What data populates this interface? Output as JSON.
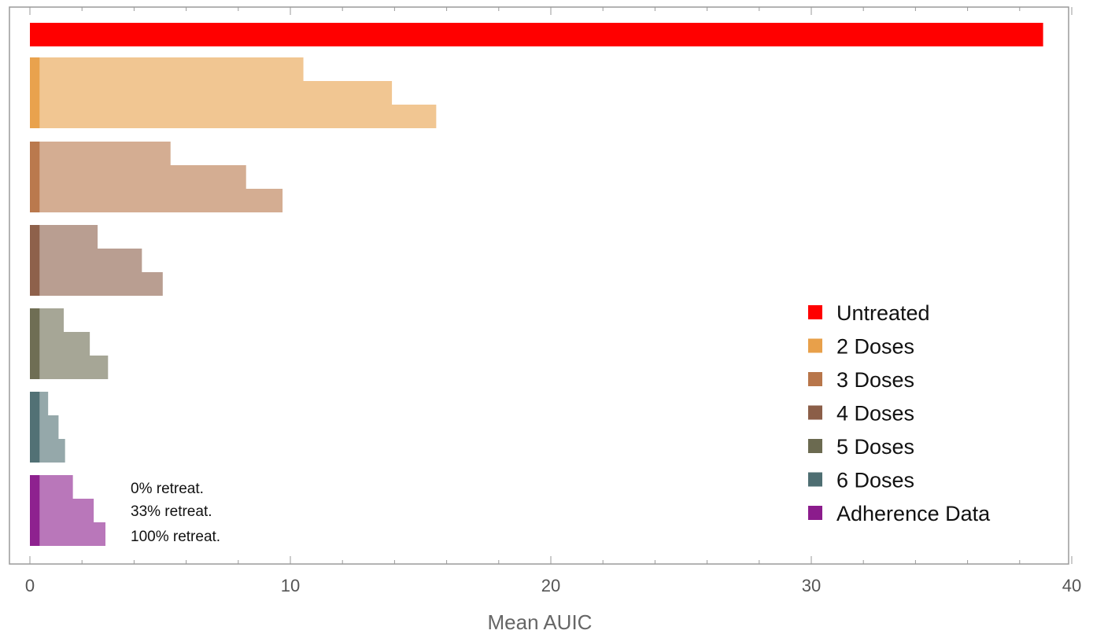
{
  "chart_data": {
    "type": "bar",
    "orientation": "horizontal",
    "xlabel": "Mean AUIC",
    "xlim": [
      0,
      40
    ],
    "xticks": [
      "0",
      "10",
      "20",
      "30",
      "40"
    ],
    "grid": false,
    "legend_position": "bottom-right",
    "series": [
      {
        "name": "Untreated",
        "color": "#ff0000",
        "values": [
          38.9
        ]
      },
      {
        "name": "2 Doses",
        "color": "#e8a04a",
        "values": [
          10.5,
          13.9,
          15.6
        ]
      },
      {
        "name": "3 Doses",
        "color": "#b8764a",
        "values": [
          5.4,
          8.3,
          9.7
        ]
      },
      {
        "name": "4 Doses",
        "color": "#8b5e48",
        "values": [
          2.6,
          4.3,
          5.1
        ]
      },
      {
        "name": "5 Doses",
        "color": "#6b6a50",
        "values": [
          1.3,
          2.3,
          3.0
        ]
      },
      {
        "name": "6 Doses",
        "color": "#4e6e72",
        "values": [
          0.7,
          1.1,
          1.35
        ]
      },
      {
        "name": "Adherence Data",
        "color": "#8b1c8c",
        "values": [
          1.65,
          2.45,
          2.9
        ]
      }
    ],
    "annotations": [
      "0% retreat.",
      "33% retreat.",
      "100% retreat."
    ]
  }
}
